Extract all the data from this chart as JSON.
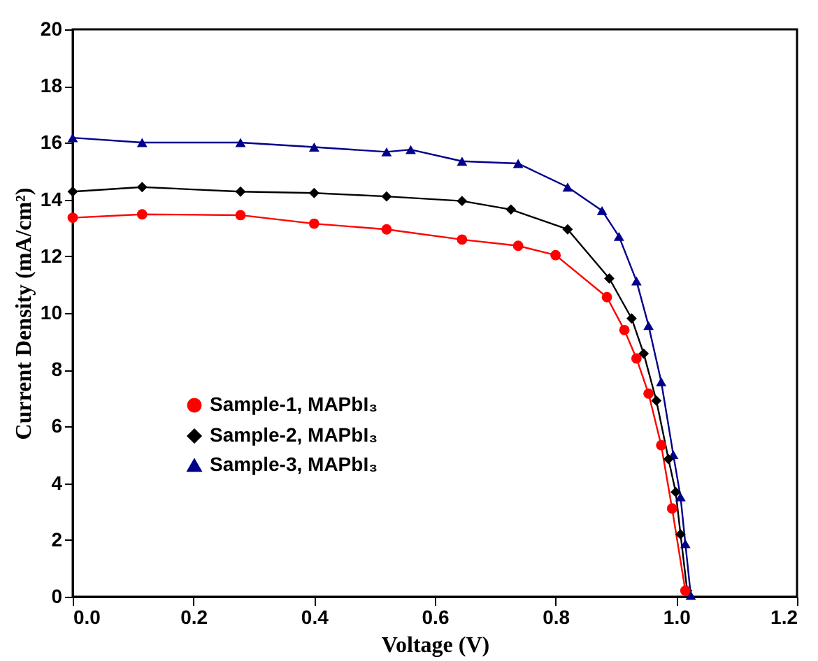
{
  "chart_data": {
    "type": "line",
    "xlabel": "Voltage (V)",
    "ylabel": "Current Density (mA/cm²)",
    "xlim": [
      0,
      1.2
    ],
    "ylim": [
      0,
      20
    ],
    "xticks": [
      {
        "value": 0,
        "label": "0.0"
      },
      {
        "value": 0.2,
        "label": "0.2"
      },
      {
        "value": 0.4,
        "label": "0.4"
      },
      {
        "value": 0.6,
        "label": "0.6"
      },
      {
        "value": 0.8,
        "label": "0.8"
      },
      {
        "value": 1.0,
        "label": "1.0"
      },
      {
        "value": 1.2,
        "label": "1.2"
      }
    ],
    "yticks": [
      0,
      2,
      4,
      6,
      8,
      10,
      12,
      14,
      16,
      18,
      20
    ],
    "grid": false,
    "legend": "bottom left",
    "series": [
      {
        "name": "Sample-1, MAPbI₃",
        "color": "#ff0000",
        "marker": "circle",
        "x": [
          0,
          0.115,
          0.278,
          0.4,
          0.52,
          0.645,
          0.738,
          0.8,
          0.885,
          0.914,
          0.934,
          0.954,
          0.975,
          0.993,
          1.015
        ],
        "values": [
          13.36,
          13.48,
          13.45,
          13.15,
          12.95,
          12.59,
          12.37,
          12.04,
          10.56,
          9.4,
          8.4,
          7.16,
          5.34,
          3.11,
          0.21
        ]
      },
      {
        "name": "Sample-2, MAPbI₃",
        "color": "#000000",
        "marker": "diamond",
        "x": [
          0,
          0.115,
          0.278,
          0.4,
          0.52,
          0.645,
          0.726,
          0.82,
          0.889,
          0.926,
          0.946,
          0.967,
          0.987,
          0.999,
          1.007,
          1.018
        ],
        "values": [
          14.28,
          14.44,
          14.28,
          14.23,
          14.11,
          13.95,
          13.65,
          12.95,
          11.22,
          9.81,
          8.57,
          6.91,
          4.85,
          3.69,
          2.2,
          0.21
        ]
      },
      {
        "name": "Sample-3, MAPbI₃",
        "color": "#00008b",
        "marker": "triangle",
        "x": [
          0,
          0.115,
          0.278,
          0.4,
          0.52,
          0.56,
          0.645,
          0.738,
          0.82,
          0.877,
          0.905,
          0.934,
          0.954,
          0.975,
          0.995,
          1.007,
          1.015,
          1.024
        ],
        "values": [
          16.18,
          16.01,
          16.01,
          15.85,
          15.68,
          15.76,
          15.35,
          15.27,
          14.44,
          13.61,
          12.7,
          11.13,
          9.56,
          7.58,
          5.01,
          3.52,
          1.87,
          0.05
        ]
      }
    ]
  }
}
